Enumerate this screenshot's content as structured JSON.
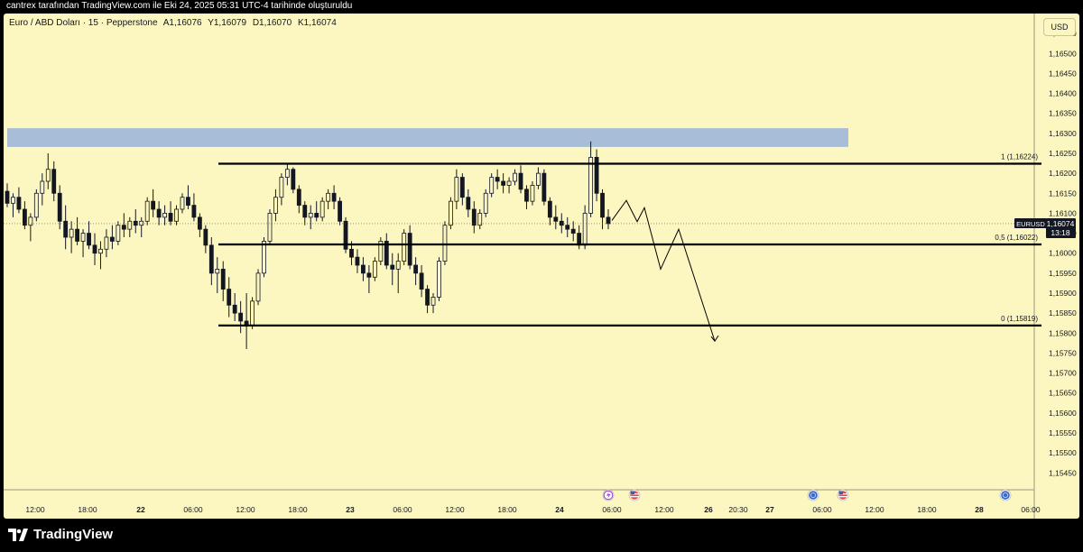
{
  "header": {
    "attribution": "cantrex tarafından TradingView.com ile Eki 24, 2025 05:31 UTC-4 tarihinde oluşturuldu"
  },
  "legend": {
    "symbol": "Euro / ABD Doları · 15 · Pepperstone",
    "open": "A1,16076",
    "high": "Y1,16079",
    "low": "D1,16070",
    "close": "K1,16074"
  },
  "currency": "USD",
  "brand": {
    "name": "TradingView"
  },
  "colors": {
    "background": "#fcf6c0",
    "zone": "#a8bdd8",
    "candle": "#131722"
  },
  "chart_data": {
    "type": "candlestick",
    "symbol": "EURUSD",
    "y_ticks": [
      "1,16550",
      "1,16500",
      "1,16450",
      "1,16400",
      "1,16350",
      "1,16300",
      "1,16250",
      "1,16200",
      "1,16150",
      "1,16100",
      "1,16050",
      "1,16000",
      "1,15950",
      "1,15900",
      "1,15850",
      "1,15800",
      "1,15750",
      "1,15700",
      "1,15650",
      "1,15600",
      "1,15550",
      "1,15500",
      "1,15450"
    ],
    "y_tick_values": [
      1.1655,
      1.165,
      1.1645,
      1.164,
      1.1635,
      1.163,
      1.1625,
      1.162,
      1.1615,
      1.161,
      1.1605,
      1.16,
      1.1595,
      1.159,
      1.1585,
      1.158,
      1.1575,
      1.157,
      1.1565,
      1.156,
      1.1555,
      1.155,
      1.1545
    ],
    "ylim": [
      1.1541,
      1.166
    ],
    "x_ticks": [
      "12:00",
      "18:00",
      "22",
      "06:00",
      "12:00",
      "18:00",
      "23",
      "06:00",
      "12:00",
      "18:00",
      "24",
      "06:00",
      "12:00",
      "26",
      "20:30",
      "27",
      "06:00",
      "12:00",
      "18:00",
      "28",
      "06:00"
    ],
    "x_tick_positions": [
      35,
      93,
      152,
      210,
      268,
      326,
      384,
      442,
      500,
      558,
      616,
      674,
      732,
      781,
      814,
      849,
      907,
      965,
      1023,
      1081,
      1138
    ],
    "price_label": {
      "symbol": "EURUSD",
      "price": "1,16074",
      "countdown": "13:18",
      "value": 1.16074
    },
    "fib_levels": [
      {
        "label": "1 (1,16224)",
        "value": 1.16224
      },
      {
        "label": "0,5 (1,16022)",
        "value": 1.16022
      },
      {
        "label": "0 (1,15819)",
        "value": 1.15819
      }
    ],
    "resistance_zone": {
      "low": 1.16266,
      "high": 1.16313
    },
    "candles": [
      [
        1.16155,
        1.16175,
        1.16115,
        1.16125
      ],
      [
        1.16125,
        1.1615,
        1.1609,
        1.1614
      ],
      [
        1.1614,
        1.16165,
        1.161,
        1.1611
      ],
      [
        1.1611,
        1.1613,
        1.1606,
        1.1607
      ],
      [
        1.1607,
        1.161,
        1.1603,
        1.1609
      ],
      [
        1.1609,
        1.1616,
        1.1608,
        1.1615
      ],
      [
        1.1615,
        1.162,
        1.1612,
        1.1618
      ],
      [
        1.1618,
        1.1625,
        1.1616,
        1.1621
      ],
      [
        1.1621,
        1.1623,
        1.1613,
        1.1615
      ],
      [
        1.1615,
        1.1617,
        1.1606,
        1.1608
      ],
      [
        1.1608,
        1.1612,
        1.1601,
        1.1604
      ],
      [
        1.1604,
        1.1608,
        1.16,
        1.1606
      ],
      [
        1.1606,
        1.1609,
        1.1602,
        1.1603
      ],
      [
        1.1603,
        1.1606,
        1.1599,
        1.1605
      ],
      [
        1.1605,
        1.1608,
        1.1601,
        1.1602
      ],
      [
        1.1602,
        1.1605,
        1.1597,
        1.16
      ],
      [
        1.16,
        1.1603,
        1.1596,
        1.1601
      ],
      [
        1.1601,
        1.1606,
        1.1599,
        1.1604
      ],
      [
        1.1604,
        1.1607,
        1.1601,
        1.1603
      ],
      [
        1.1603,
        1.1608,
        1.1602,
        1.1607
      ],
      [
        1.1607,
        1.161,
        1.1604,
        1.1606
      ],
      [
        1.1606,
        1.1609,
        1.1604,
        1.1608
      ],
      [
        1.1608,
        1.1611,
        1.1605,
        1.1607
      ],
      [
        1.1607,
        1.1609,
        1.1604,
        1.1608
      ],
      [
        1.1608,
        1.1614,
        1.1607,
        1.1613
      ],
      [
        1.1613,
        1.1616,
        1.1609,
        1.1611
      ],
      [
        1.1611,
        1.1613,
        1.1607,
        1.1609
      ],
      [
        1.1609,
        1.1612,
        1.1607,
        1.161
      ],
      [
        1.161,
        1.1613,
        1.1607,
        1.1608
      ],
      [
        1.1608,
        1.1612,
        1.1607,
        1.1611
      ],
      [
        1.1611,
        1.1615,
        1.161,
        1.1614
      ],
      [
        1.1614,
        1.1617,
        1.1611,
        1.1612
      ],
      [
        1.1612,
        1.1615,
        1.1608,
        1.1609
      ],
      [
        1.1609,
        1.161,
        1.1604,
        1.1606
      ],
      [
        1.1606,
        1.1607,
        1.16,
        1.1602
      ],
      [
        1.1602,
        1.1604,
        1.1592,
        1.1595
      ],
      [
        1.1595,
        1.1599,
        1.159,
        1.1596
      ],
      [
        1.1596,
        1.1598,
        1.1588,
        1.1591
      ],
      [
        1.1591,
        1.1594,
        1.1584,
        1.1587
      ],
      [
        1.1587,
        1.159,
        1.1583,
        1.1585
      ],
      [
        1.1585,
        1.1588,
        1.158,
        1.1583
      ],
      [
        1.1583,
        1.159,
        1.1576,
        1.1582
      ],
      [
        1.1582,
        1.1589,
        1.1581,
        1.1588
      ],
      [
        1.1588,
        1.1596,
        1.1587,
        1.1595
      ],
      [
        1.1595,
        1.1604,
        1.1594,
        1.1603
      ],
      [
        1.1603,
        1.1611,
        1.1602,
        1.161
      ],
      [
        1.161,
        1.1616,
        1.1608,
        1.1614
      ],
      [
        1.1614,
        1.162,
        1.1612,
        1.1619
      ],
      [
        1.1619,
        1.16225,
        1.1617,
        1.1621
      ],
      [
        1.1621,
        1.16215,
        1.1615,
        1.1616
      ],
      [
        1.1616,
        1.1617,
        1.161,
        1.1612
      ],
      [
        1.1612,
        1.1613,
        1.1607,
        1.1609
      ],
      [
        1.1609,
        1.1612,
        1.1606,
        1.161
      ],
      [
        1.161,
        1.1613,
        1.1608,
        1.1609
      ],
      [
        1.1609,
        1.1614,
        1.1608,
        1.1613
      ],
      [
        1.1613,
        1.1616,
        1.1611,
        1.1615
      ],
      [
        1.1615,
        1.1617,
        1.1611,
        1.1613
      ],
      [
        1.1613,
        1.1614,
        1.1607,
        1.1608
      ],
      [
        1.1608,
        1.1609,
        1.16,
        1.1601
      ],
      [
        1.1601,
        1.1603,
        1.1597,
        1.1599
      ],
      [
        1.1599,
        1.1601,
        1.1595,
        1.1597
      ],
      [
        1.1597,
        1.1599,
        1.1593,
        1.1595
      ],
      [
        1.1595,
        1.1597,
        1.159,
        1.1594
      ],
      [
        1.1594,
        1.1599,
        1.1593,
        1.1598
      ],
      [
        1.1598,
        1.1604,
        1.1597,
        1.1603
      ],
      [
        1.1603,
        1.1605,
        1.1596,
        1.1597
      ],
      [
        1.1597,
        1.16,
        1.1592,
        1.1596
      ],
      [
        1.1596,
        1.16,
        1.159,
        1.1598
      ],
      [
        1.1598,
        1.1606,
        1.1597,
        1.1605
      ],
      [
        1.1605,
        1.1607,
        1.1596,
        1.1597
      ],
      [
        1.1597,
        1.1599,
        1.1592,
        1.1595
      ],
      [
        1.1595,
        1.1597,
        1.1589,
        1.1591
      ],
      [
        1.1591,
        1.1592,
        1.1585,
        1.1587
      ],
      [
        1.1587,
        1.159,
        1.1585,
        1.1589
      ],
      [
        1.1589,
        1.1599,
        1.1588,
        1.1598
      ],
      [
        1.1598,
        1.1608,
        1.1597,
        1.1607
      ],
      [
        1.1607,
        1.1614,
        1.1606,
        1.1613
      ],
      [
        1.1613,
        1.1621,
        1.1611,
        1.1619
      ],
      [
        1.1619,
        1.162,
        1.1612,
        1.1614
      ],
      [
        1.1614,
        1.1616,
        1.1609,
        1.1611
      ],
      [
        1.1611,
        1.1613,
        1.1605,
        1.1607
      ],
      [
        1.1607,
        1.1611,
        1.1606,
        1.161
      ],
      [
        1.161,
        1.1616,
        1.1609,
        1.1615
      ],
      [
        1.1615,
        1.162,
        1.1614,
        1.1619
      ],
      [
        1.1619,
        1.1621,
        1.1616,
        1.1618
      ],
      [
        1.1618,
        1.162,
        1.1615,
        1.1617
      ],
      [
        1.1617,
        1.1619,
        1.1615,
        1.1618
      ],
      [
        1.1618,
        1.1621,
        1.1617,
        1.162
      ],
      [
        1.162,
        1.1622,
        1.1615,
        1.1616
      ],
      [
        1.1616,
        1.1617,
        1.1611,
        1.1613
      ],
      [
        1.1613,
        1.1618,
        1.1612,
        1.1617
      ],
      [
        1.1617,
        1.16215,
        1.1616,
        1.162
      ],
      [
        1.162,
        1.1621,
        1.1612,
        1.1613
      ],
      [
        1.1613,
        1.1614,
        1.1607,
        1.1609
      ],
      [
        1.1609,
        1.1612,
        1.1606,
        1.1608
      ],
      [
        1.1608,
        1.161,
        1.1605,
        1.1607
      ],
      [
        1.1607,
        1.1609,
        1.1604,
        1.1606
      ],
      [
        1.1606,
        1.1608,
        1.1603,
        1.1605
      ],
      [
        1.1605,
        1.1607,
        1.1601,
        1.1602
      ],
      [
        1.1602,
        1.1612,
        1.1601,
        1.161
      ],
      [
        1.161,
        1.1628,
        1.1609,
        1.1624
      ],
      [
        1.1624,
        1.1626,
        1.1613,
        1.1615
      ],
      [
        1.1615,
        1.1616,
        1.1606,
        1.1609
      ],
      [
        1.1609,
        1.1611,
        1.1606,
        1.16074
      ]
    ],
    "projection_path": [
      [
        674,
        1.16082
      ],
      [
        690,
        1.16132
      ],
      [
        702,
        1.16079
      ],
      [
        710,
        1.16114
      ],
      [
        728,
        1.1596
      ],
      [
        748,
        1.1606
      ],
      [
        788,
        1.1578
      ]
    ]
  }
}
